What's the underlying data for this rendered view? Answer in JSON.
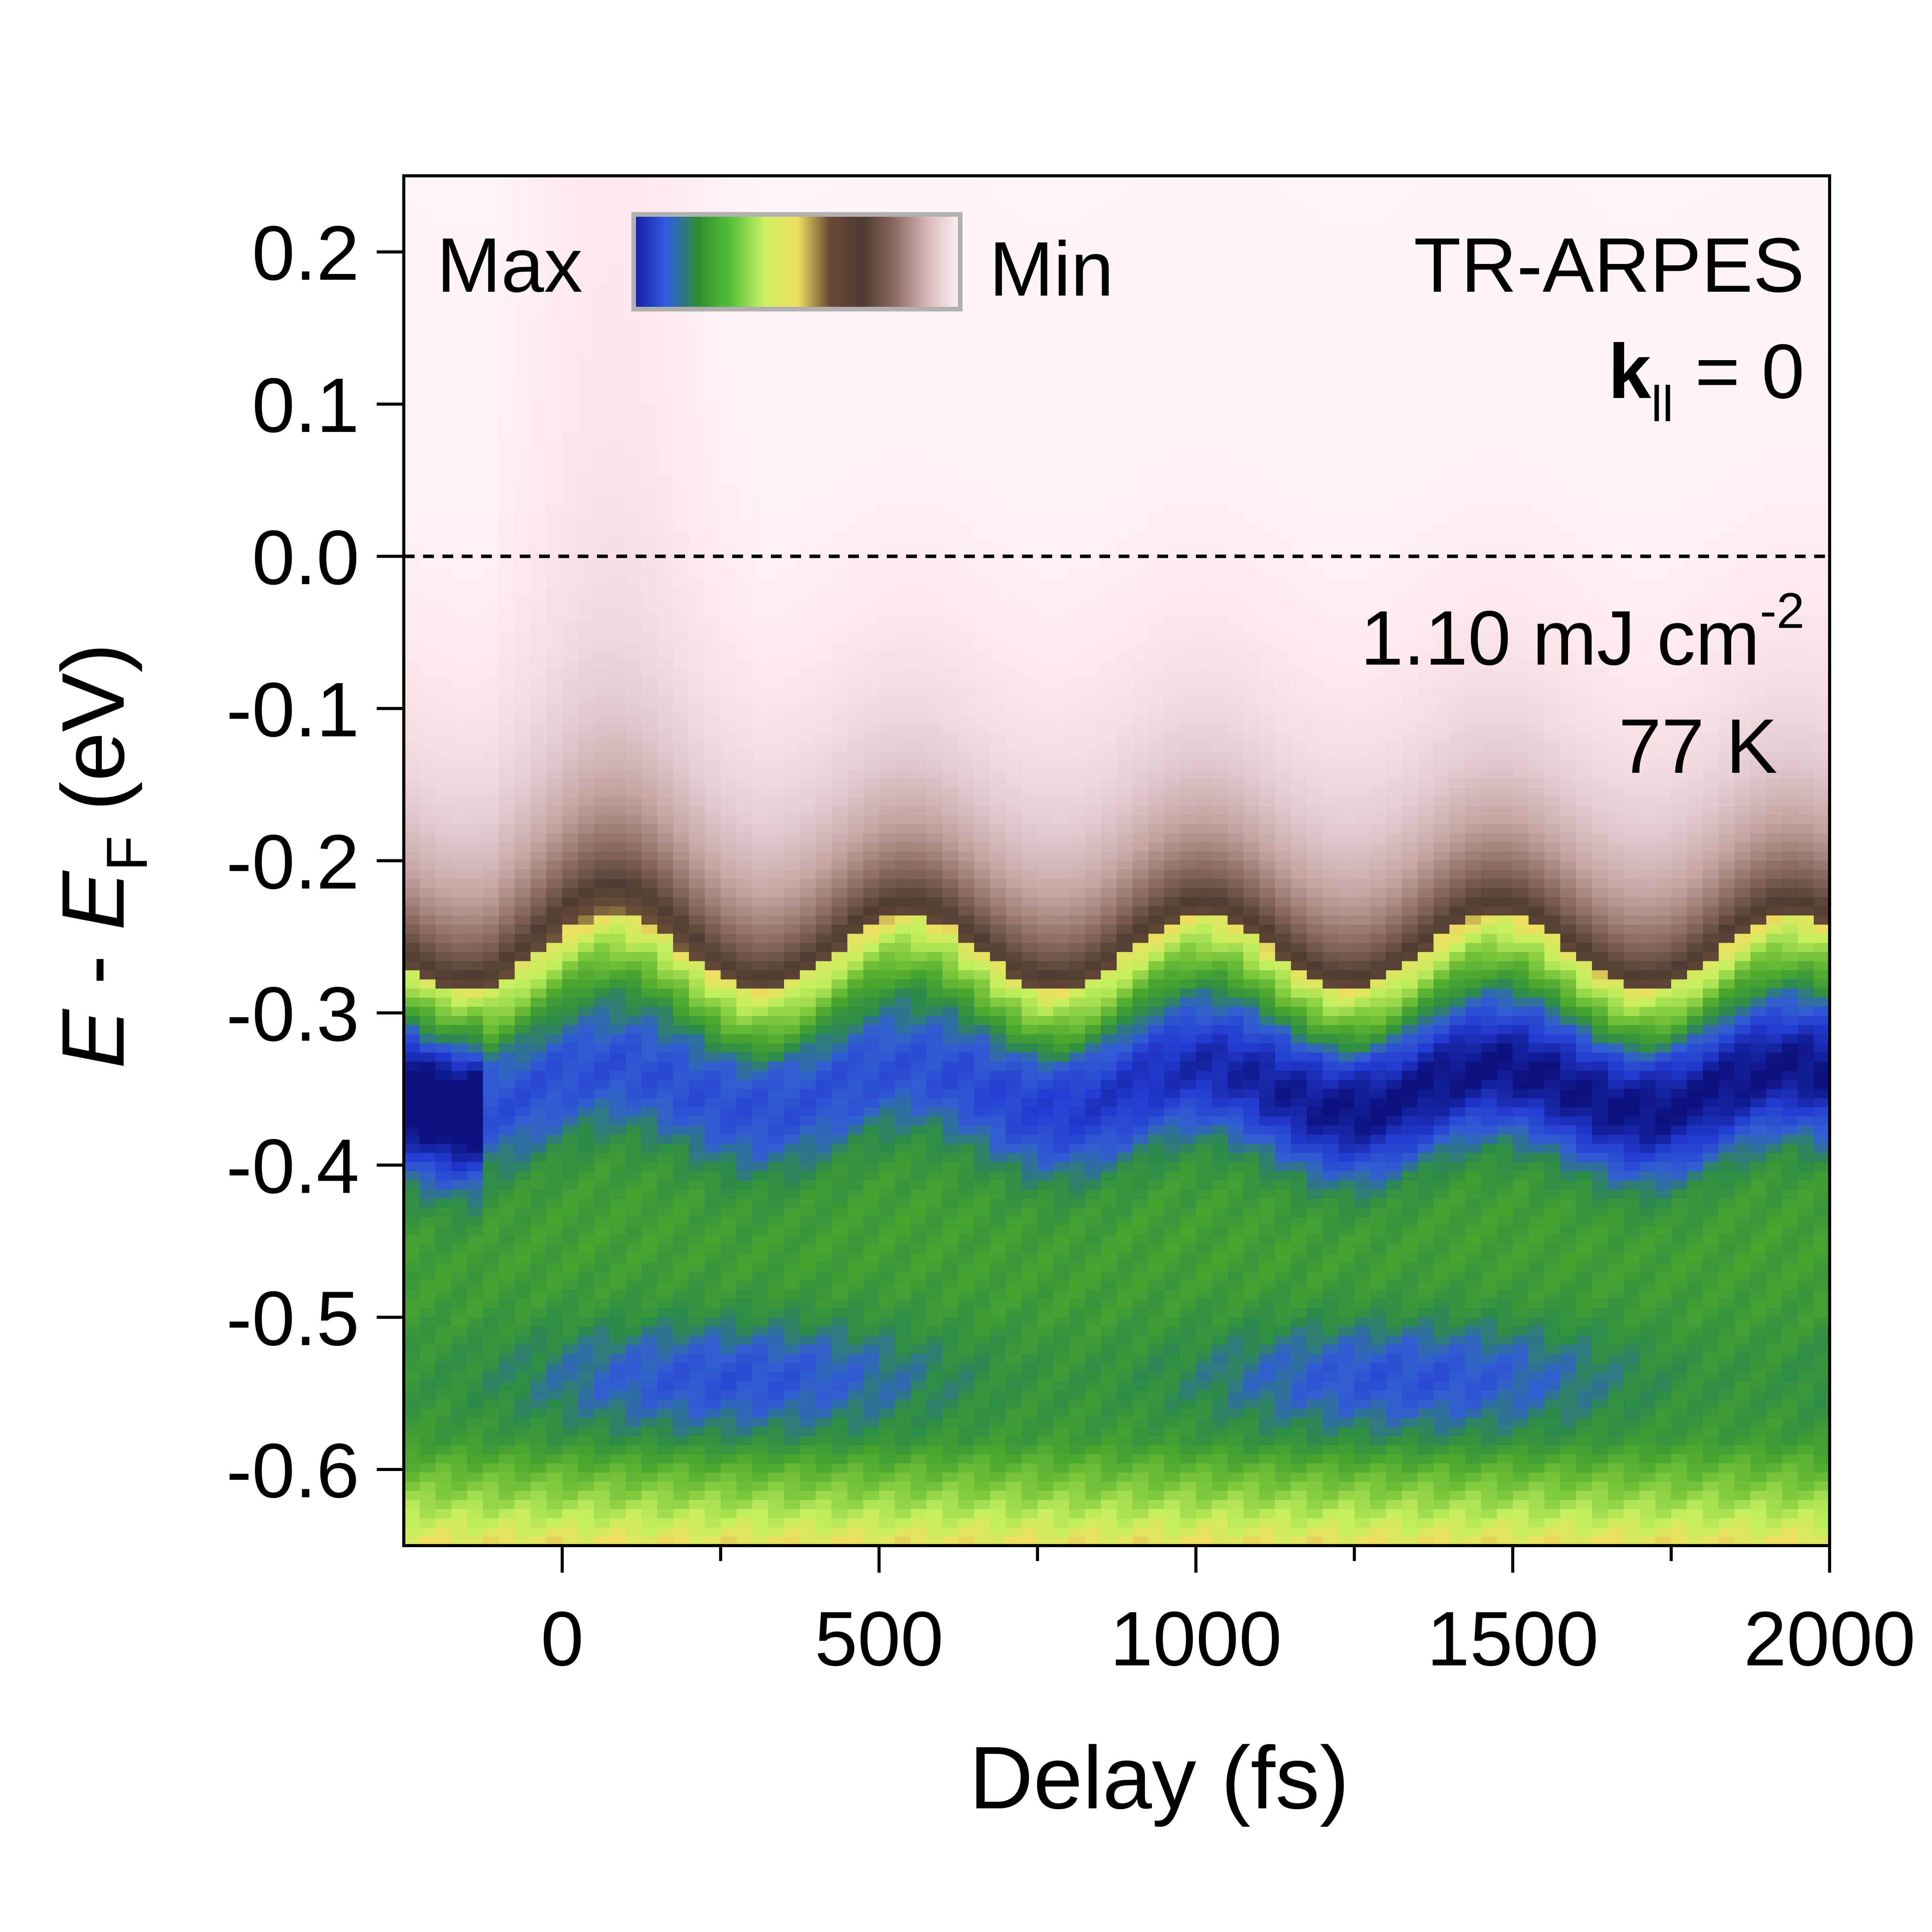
{
  "chart_data": {
    "type": "heatmap",
    "title": "",
    "xlabel": "Delay (fs)",
    "ylabel": {
      "prefix": "E",
      "middle": " - ",
      "symbol": "E",
      "subscript": "F",
      "unit": " (eV)"
    },
    "xlim": [
      -250,
      2000
    ],
    "ylim": [
      -0.65,
      0.25
    ],
    "x_ticks": [
      {
        "value": 0,
        "label": "0"
      },
      {
        "value": 500,
        "label": "500"
      },
      {
        "value": 1000,
        "label": "1000"
      },
      {
        "value": 1500,
        "label": "1500"
      },
      {
        "value": 2000,
        "label": "2000"
      }
    ],
    "x_minor_ticks": [
      250,
      750,
      1250,
      1750
    ],
    "y_ticks": [
      {
        "value": 0.2,
        "label": "0.2"
      },
      {
        "value": 0.1,
        "label": "0.1"
      },
      {
        "value": 0.0,
        "label": "0.0"
      },
      {
        "value": -0.1,
        "label": "-0.1"
      },
      {
        "value": -0.2,
        "label": "-0.2"
      },
      {
        "value": -0.3,
        "label": "-0.3"
      },
      {
        "value": -0.4,
        "label": "-0.4"
      },
      {
        "value": -0.5,
        "label": "-0.5"
      },
      {
        "value": -0.6,
        "label": "-0.6"
      }
    ],
    "reference_line": {
      "y": 0.0,
      "style": "dashed",
      "color": "#000000"
    },
    "colorbar": {
      "max_label": "Max",
      "min_label": "Min",
      "colors": [
        "#1a1a9e",
        "#2f5de0",
        "#2e8f2e",
        "#57c23a",
        "#c9f063",
        "#f0e060",
        "#6b4a35",
        "#4e3a32",
        "#8a6a62",
        "#d8b8b8",
        "#fff4f6"
      ]
    },
    "annotations": {
      "technique": "TR-ARPES",
      "momentum": {
        "symbol": "k",
        "subscript": "ll",
        "rest": " = 0"
      },
      "fluence": {
        "text": "1.10 mJ cm",
        "superscript": "-2"
      },
      "temperature": "77 K"
    },
    "features": {
      "band_center_ev": -0.35,
      "band_oscillation_period_fs": 465,
      "band_oscillation_amplitude_ev": 0.025,
      "fermi_edge_ev": -0.26,
      "lower_band_ev": -0.54
    }
  }
}
